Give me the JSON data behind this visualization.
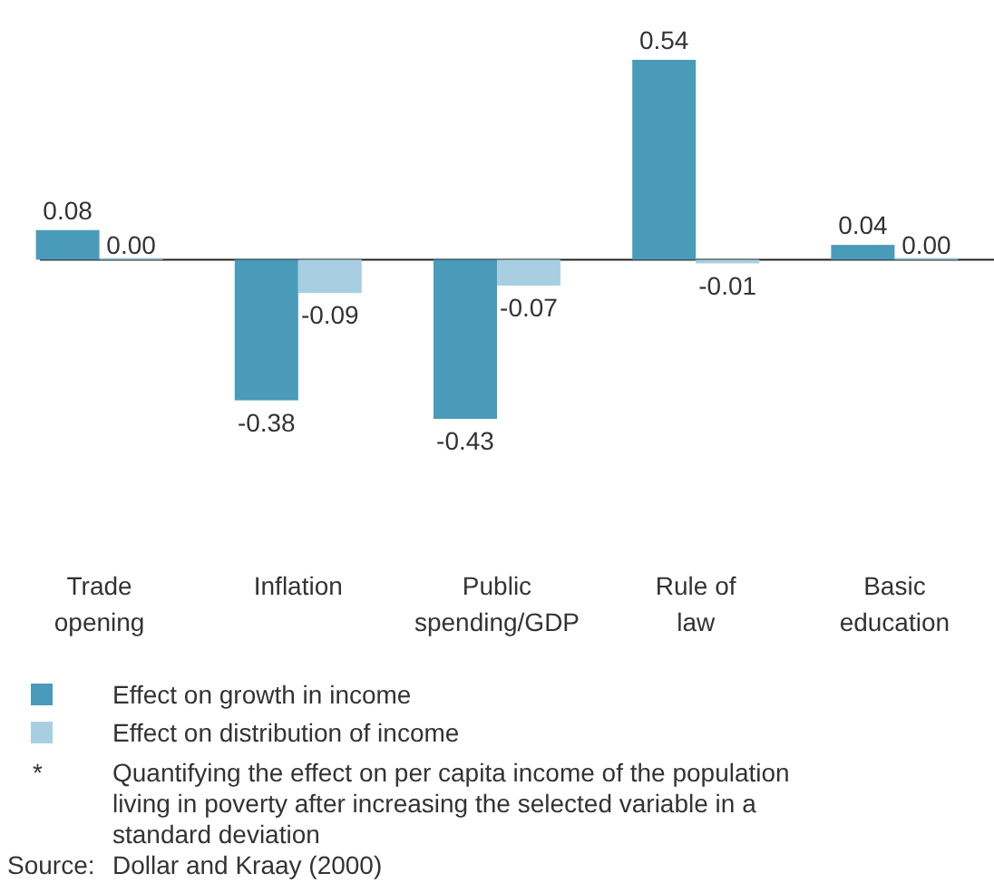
{
  "chart_data": {
    "type": "bar",
    "categories": [
      "Trade\nopening",
      "Inflation",
      "Public\nspending/GDP",
      "Rule of\nlaw",
      "Basic\neducation"
    ],
    "series": [
      {
        "name": "Effect on growth in income",
        "color": "#4a9bb9",
        "values": [
          0.08,
          -0.38,
          -0.43,
          0.54,
          0.04
        ],
        "value_labels": [
          "0.08",
          "-0.38",
          "-0.43",
          "0.54",
          "0.04"
        ]
      },
      {
        "name": "Effect on distribution of income",
        "color": "#a8cfe1",
        "values": [
          0.0,
          -0.09,
          -0.07,
          -0.01,
          0.0
        ],
        "value_labels": [
          "0.00",
          "-0.09",
          "-0.07",
          "-0.01",
          "0.00"
        ]
      }
    ],
    "legend": "bottom",
    "annotations": [
      "* Quantifying the effect on per capita income of the population living in poverty after increasing the selected variable in a standard deviation",
      "Source: Dollar and Kraay (2000)"
    ]
  }
}
